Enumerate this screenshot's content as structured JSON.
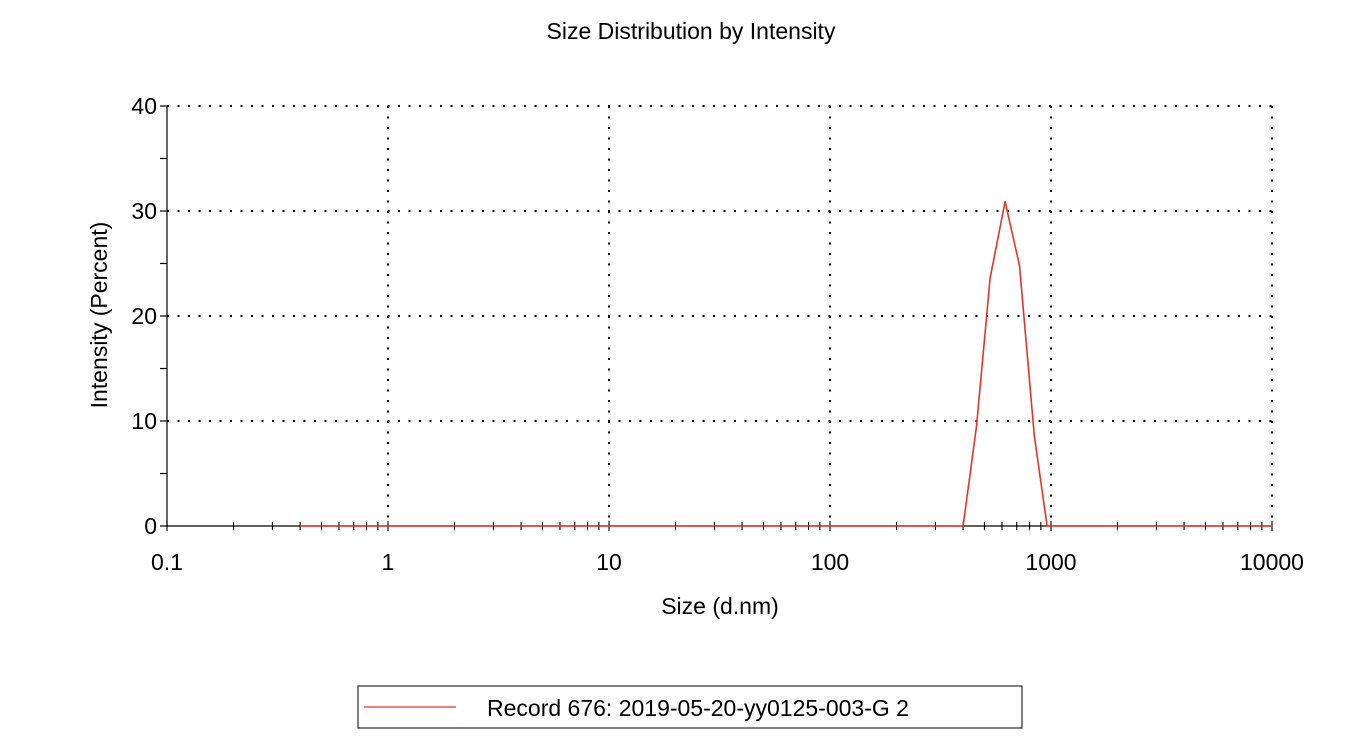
{
  "chart_data": {
    "type": "line",
    "title": "Size Distribution by Intensity",
    "xlabel": "Size (d.nm)",
    "ylabel": "Intensity (Percent)",
    "x_scale": "log",
    "xlim": [
      0.1,
      10000
    ],
    "ylim": [
      0,
      40
    ],
    "x_ticks": [
      0.1,
      1,
      10,
      100,
      1000,
      10000
    ],
    "x_tick_labels": [
      "0.1",
      "1",
      "10",
      "100",
      "1000",
      "10000"
    ],
    "y_ticks": [
      0,
      10,
      20,
      30,
      40
    ],
    "y_tick_labels": [
      "0",
      "10",
      "20",
      "30",
      "40"
    ],
    "grid": "dotted",
    "legend_position": "bottom-center",
    "series": [
      {
        "name": "Record 676: 2019-05-20-yy0125-003-G 2",
        "color": "#e8332a",
        "x": [
          0.4,
          0.5,
          0.6,
          0.7,
          0.8,
          1,
          2,
          5,
          10,
          20,
          50,
          100,
          200,
          300,
          400,
          460,
          530,
          620,
          720,
          840,
          960,
          1000,
          2000,
          5000,
          10000
        ],
        "y": [
          0,
          0,
          0,
          0,
          0,
          0,
          0,
          0,
          0,
          0,
          0,
          0,
          0,
          0,
          0,
          9.5,
          23.6,
          30.9,
          24.8,
          8.6,
          0,
          0,
          0,
          0,
          0
        ]
      }
    ]
  }
}
